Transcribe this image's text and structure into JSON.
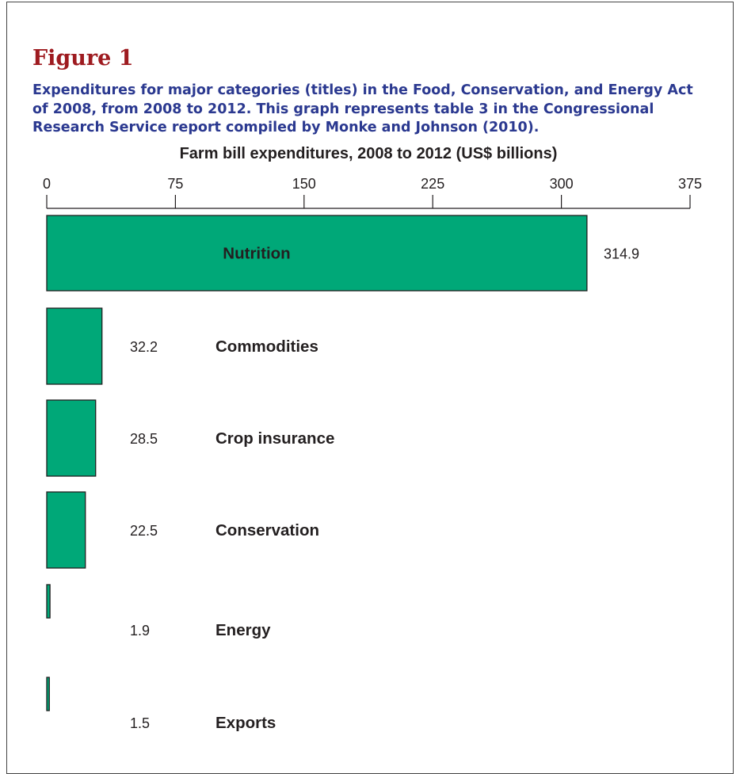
{
  "figure": {
    "label": "Figure 1",
    "caption": "Expenditures for major categories (titles) in the Food, Conservation, and Energy Act of 2008, from 2008 to 2012. This graph represents table 3 in the Congressional Research Service report compiled by Monke and Johnson (2010)."
  },
  "colors": {
    "bar_fill": "#00a878",
    "bar_stroke": "#1f1f1f",
    "figure_label": "#9e1b20",
    "caption": "#2b3990"
  },
  "chart_data": {
    "type": "bar",
    "orientation": "horizontal",
    "title": "Farm bill expenditures, 2008 to 2012 (US$ billions)",
    "xlabel": "",
    "ylabel": "",
    "xlim": [
      0,
      375
    ],
    "xticks": [
      0,
      75,
      150,
      225,
      300,
      375
    ],
    "axis_position": "top",
    "grid": false,
    "legend": "none",
    "categories": [
      "Nutrition",
      "Commodities",
      "Crop insurance",
      "Conservation",
      "Energy",
      "Exports"
    ],
    "values": [
      314.9,
      32.2,
      28.5,
      22.5,
      1.9,
      1.5
    ],
    "value_labels": [
      "314.9",
      "32.2",
      "28.5",
      "22.5",
      "1.9",
      "1.5"
    ]
  }
}
